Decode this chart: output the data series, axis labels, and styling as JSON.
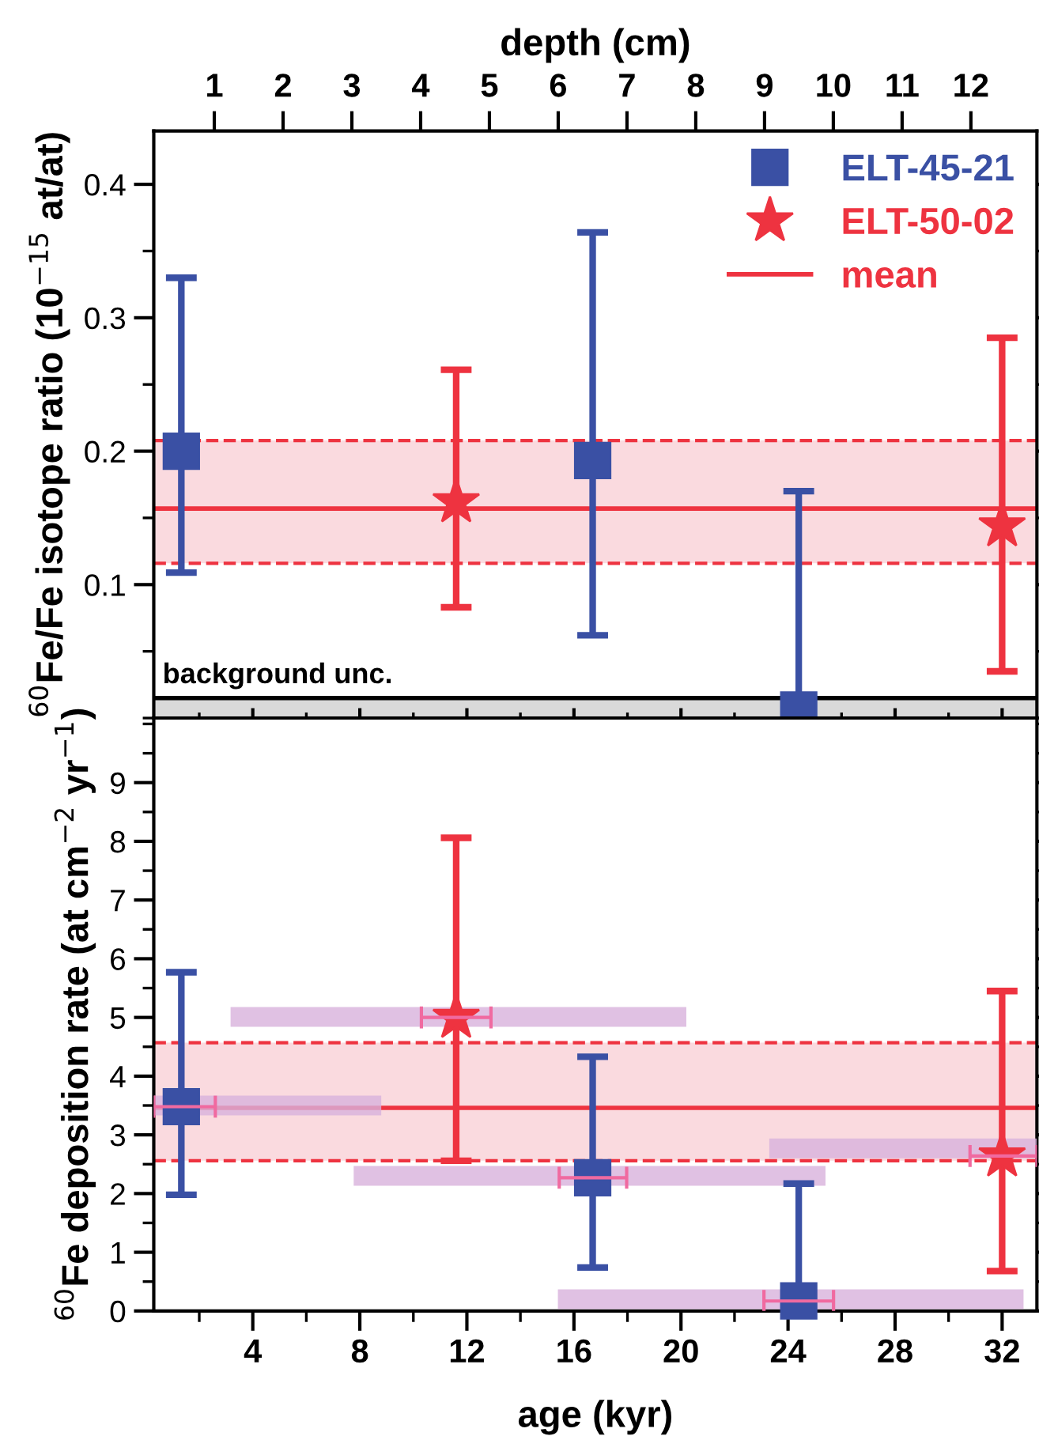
{
  "chart_data": [
    {
      "type": "scatter",
      "ylabel": "$^{60}$Fe/Fe isotope ratio (10$^{−15}$ at/at)",
      "x2label": "depth (cm)",
      "xlim": [
        0.3,
        33.3
      ],
      "xticks": [
        {
          "value": 4,
          "label": null
        },
        {
          "value": 8,
          "label": null
        },
        {
          "value": 12,
          "label": null
        },
        {
          "value": 16,
          "label": null
        },
        {
          "value": 20,
          "label": null
        },
        {
          "value": 24,
          "label": null
        },
        {
          "value": 28,
          "label": null
        },
        {
          "value": 32,
          "label": null
        }
      ],
      "x2lim": [
        0.12,
        12.96
      ],
      "x2ticks": [
        1,
        2,
        3,
        4,
        5,
        6,
        7,
        8,
        9,
        10,
        11,
        12
      ],
      "ylim": [
        0,
        0.44
      ],
      "yticks": [
        0.1,
        0.2,
        0.3,
        0.4
      ],
      "tick_labels": "y",
      "legend": "top right",
      "series": [
        {
          "name": "ELT-45-21",
          "color": "#3a50a4",
          "marker": "square",
          "x": [
            1.33,
            16.7,
            24.4
          ],
          "values": [
            0.2,
            0.193,
            0.006
          ],
          "errors": [
            [
              0.109,
              0.33
            ],
            [
              0.062,
              0.364
            ],
            [
              0.006,
              0.17
            ]
          ]
        },
        {
          "name": "ELT-50-02",
          "color": "#ee3340",
          "marker": "star",
          "x": [
            11.6,
            32.0
          ],
          "values": [
            0.162,
            0.144
          ],
          "errors": [
            [
              0.083,
              0.261
            ],
            [
              0.035,
              0.285
            ]
          ]
        }
      ],
      "ref_lines": [
        {
          "axis": "y",
          "value": 0.157,
          "label": "mean",
          "color": "#ee3340",
          "line_style": "solid"
        },
        {
          "axis": "y",
          "value": 0.116,
          "color": "#ee3340",
          "line_style": "dashed"
        },
        {
          "axis": "y",
          "value": 0.208,
          "color": "#ee3340",
          "line_style": "dashed"
        },
        {
          "axis": "y",
          "value": 0.015,
          "color": "#000000",
          "line_style": "solid"
        }
      ],
      "bands": [
        {
          "axis": "y",
          "from": 0.116,
          "to": 0.208,
          "color": "#fadadf"
        },
        {
          "axis": "y",
          "from": 0,
          "to": 0.015,
          "label": "background unc.",
          "color": "#d9d9d9"
        }
      ]
    },
    {
      "type": "scatter",
      "ylabel": "$^{60}$Fe deposition rate (at cm$^{−2}$ yr$^{−1}$)",
      "xlabel": "age (kyr)",
      "xlim": [
        0.3,
        33.3
      ],
      "xticks": [
        4,
        8,
        12,
        16,
        20,
        24,
        28,
        32
      ],
      "ylim": [
        0,
        10.1
      ],
      "yticks": [
        0,
        1,
        2,
        3,
        4,
        5,
        6,
        7,
        8,
        9
      ],
      "series": [
        {
          "type": "line",
          "color": "#d8b2dc",
          "x": [
            0.3,
            8.8
          ],
          "values": [
            3.5,
            3.5
          ]
        },
        {
          "type": "line",
          "color": "#d8b2dc",
          "x": [
            3.17,
            20.2
          ],
          "values": [
            5.01,
            5.01
          ]
        },
        {
          "type": "line",
          "color": "#d8b2dc",
          "x": [
            7.77,
            25.4
          ],
          "values": [
            2.3,
            2.3
          ]
        },
        {
          "type": "line",
          "color": "#d8b2dc",
          "x": [
            15.4,
            32.8
          ],
          "values": [
            0.2,
            0.2
          ]
        },
        {
          "type": "line",
          "color": "#d8b2dc",
          "x": [
            23.3,
            33.3
          ],
          "values": [
            2.77,
            2.77
          ]
        },
        {
          "color": "#3a50a4",
          "marker": "square",
          "x": [
            1.33,
            16.7,
            24.4
          ],
          "values": [
            3.48,
            2.27,
            0.17
          ],
          "errors": [
            [
              1.98,
              5.77
            ],
            [
              0.74,
              4.33
            ],
            [
              0.17,
              2.17
            ]
          ],
          "xerrors": [
            [
              0.3,
              2.6
            ],
            [
              15.45,
              17.97
            ],
            [
              23.1,
              25.7
            ]
          ]
        },
        {
          "color": "#ee3340",
          "marker": "star",
          "x": [
            11.6,
            32.0
          ],
          "values": [
            5.0,
            2.64
          ],
          "errors": [
            [
              2.56,
              8.06
            ],
            [
              0.68,
              5.45
            ]
          ],
          "xerrors": [
            [
              10.3,
              12.9
            ],
            [
              30.8,
              33.3
            ]
          ]
        }
      ],
      "ref_lines": [
        {
          "axis": "y",
          "value": 3.46,
          "color": "#ee3340",
          "line_style": "solid"
        },
        {
          "axis": "y",
          "value": 2.56,
          "color": "#ee3340",
          "line_style": "dashed"
        },
        {
          "axis": "y",
          "value": 4.57,
          "color": "#ee3340",
          "line_style": "dashed"
        }
      ],
      "bands": [
        {
          "axis": "y",
          "from": 2.56,
          "to": 4.57,
          "color": "#fadadf"
        }
      ]
    }
  ]
}
